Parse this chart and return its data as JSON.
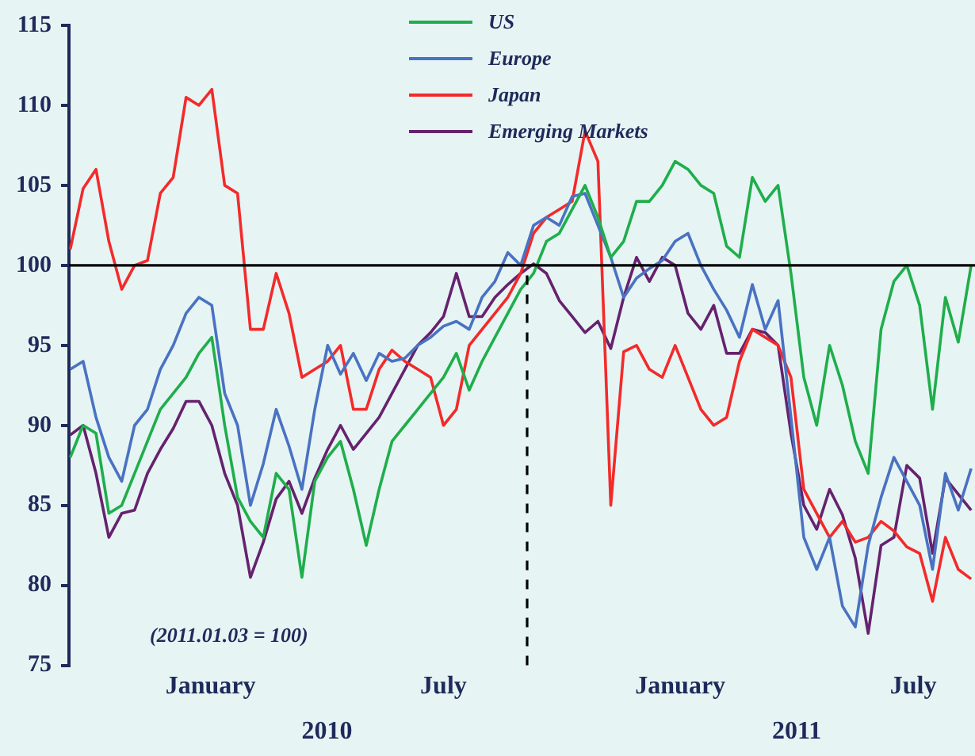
{
  "chart_data": {
    "type": "line",
    "x": [
      "2009-09-14",
      "2009-09-24",
      "2009-10-04",
      "2009-10-14",
      "2009-10-24",
      "2009-11-03",
      "2009-11-13",
      "2009-11-23",
      "2009-12-03",
      "2009-12-13",
      "2009-12-23",
      "2010-01-02",
      "2010-01-12",
      "2010-01-22",
      "2010-02-01",
      "2010-02-11",
      "2010-02-21",
      "2010-03-03",
      "2010-03-13",
      "2010-03-23",
      "2010-04-02",
      "2010-04-12",
      "2010-04-22",
      "2010-05-02",
      "2010-05-12",
      "2010-05-22",
      "2010-06-01",
      "2010-06-11",
      "2010-06-21",
      "2010-07-01",
      "2010-07-11",
      "2010-07-21",
      "2010-07-31",
      "2010-08-10",
      "2010-08-20",
      "2010-08-30",
      "2010-09-09",
      "2010-09-19",
      "2010-09-29",
      "2010-10-09",
      "2010-10-19",
      "2010-10-29",
      "2010-11-08",
      "2010-11-18",
      "2010-11-28",
      "2010-12-08",
      "2010-12-18",
      "2010-12-28",
      "2011-01-07",
      "2011-01-17",
      "2011-01-27",
      "2011-02-06",
      "2011-02-16",
      "2011-02-26",
      "2011-03-08",
      "2011-03-18",
      "2011-03-28",
      "2011-04-07",
      "2011-04-17",
      "2011-04-27",
      "2011-05-07",
      "2011-05-17",
      "2011-05-27",
      "2011-06-06",
      "2011-06-16",
      "2011-06-26",
      "2011-07-06",
      "2011-07-16",
      "2011-07-26",
      "2011-08-05",
      "2011-08-15"
    ],
    "series": [
      {
        "name": "US",
        "color": "#1fae4b",
        "values": [
          88,
          90,
          89.5,
          84.5,
          85,
          87,
          89,
          91,
          92,
          93,
          94.5,
          95.5,
          90,
          85.5,
          84,
          83,
          87,
          86,
          80.5,
          86.5,
          88,
          89,
          86,
          82.5,
          86,
          89,
          90,
          91,
          92,
          93,
          94.5,
          92.2,
          94,
          95.5,
          97,
          98.5,
          99.5,
          101.5,
          102,
          103.5,
          105,
          103,
          100.5,
          101.5,
          104,
          104,
          105,
          106.5,
          106,
          105,
          104.5,
          101.2,
          100.5,
          105.5,
          104,
          105,
          99.5,
          93,
          90,
          95,
          92.5,
          89,
          87,
          96,
          99,
          100,
          97.5,
          91,
          98,
          95.2,
          100
        ]
      },
      {
        "name": "Europe",
        "color": "#4a72c2",
        "values": [
          93.5,
          94,
          90.5,
          88,
          86.5,
          90,
          91,
          93.5,
          95,
          97,
          98,
          97.5,
          92,
          90,
          85,
          87.6,
          91,
          88.7,
          86,
          91,
          95,
          93.2,
          94.5,
          92.8,
          94.5,
          94,
          94.2,
          95,
          95.5,
          96.2,
          96.5,
          96,
          98,
          99,
          100.8,
          100,
          102.5,
          103,
          102.5,
          104.3,
          104.5,
          102.5,
          100.5,
          98,
          99.2,
          99.8,
          100.3,
          101.5,
          102,
          100,
          98.5,
          97.2,
          95.5,
          98.8,
          96,
          97.8,
          90.5,
          83,
          81,
          83,
          78.7,
          77.4,
          82.5,
          85.5,
          88,
          86.5,
          85,
          81,
          87,
          84.7,
          87.3
        ]
      },
      {
        "name": "Japan",
        "color": "#f42a2a",
        "values": [
          101,
          104.8,
          106,
          101.5,
          98.5,
          100,
          100.3,
          104.5,
          105.5,
          110.5,
          110,
          111,
          105,
          104.5,
          96,
          96,
          99.5,
          97,
          93,
          93.5,
          94,
          95,
          91,
          91,
          93.5,
          94.7,
          94,
          93.5,
          93,
          90,
          91,
          95,
          96,
          97,
          98,
          99.5,
          102,
          103,
          103.5,
          104,
          108.4,
          106.5,
          85,
          94.6,
          95,
          93.5,
          93,
          95,
          93,
          91,
          90,
          90.5,
          94,
          96,
          95.5,
          95,
          93,
          86,
          84.5,
          83,
          84,
          82.7,
          83,
          84,
          83.4,
          82.4,
          82,
          79,
          83,
          81,
          80.4
        ]
      },
      {
        "name": "Emerging Markets",
        "color": "#66226e",
        "values": [
          89.4,
          90,
          87,
          83,
          84.5,
          84.7,
          87,
          88.5,
          89.8,
          91.5,
          91.5,
          90,
          87,
          85,
          80.5,
          82.7,
          85.4,
          86.5,
          84.5,
          86.7,
          88.5,
          90,
          88.5,
          89.5,
          90.5,
          92,
          93.5,
          95,
          95.8,
          96.8,
          99.5,
          96.8,
          96.8,
          98,
          98.8,
          99.5,
          100.1,
          99.5,
          97.8,
          96.8,
          95.8,
          96.5,
          94.8,
          98,
          100.5,
          99,
          100.5,
          100,
          97,
          96,
          97.5,
          94.5,
          94.5,
          96,
          95.8,
          95,
          89.5,
          85,
          83.5,
          86,
          84.4,
          81.7,
          77,
          82.5,
          83,
          87.5,
          86.7,
          82,
          86.7,
          85.7,
          84.7
        ]
      }
    ],
    "xlim": [
      "2009-09-13",
      "2011-08-18"
    ],
    "xticks": [
      {
        "value": "2010-01-01",
        "label": "January"
      },
      {
        "value": "2010-07-01",
        "label": "July"
      },
      {
        "value": "2011-01-01",
        "label": "January"
      },
      {
        "value": "2011-07-01",
        "label": "July"
      }
    ],
    "ylim": [
      75,
      115
    ],
    "yticks": [
      75,
      80,
      85,
      90,
      95,
      100,
      105,
      110,
      115
    ],
    "ref_lines": [
      {
        "axis": "y",
        "value": 100,
        "color": "#000000"
      },
      {
        "axis": "x",
        "value": "2010-09-04",
        "color": "#000000",
        "line_style": "dashed"
      }
    ],
    "annotations": [
      "(2011.01.03 = 100)",
      "2010",
      "2011"
    ],
    "grid": false,
    "legend": "top",
    "marker": "none",
    "line_style": "solid"
  }
}
